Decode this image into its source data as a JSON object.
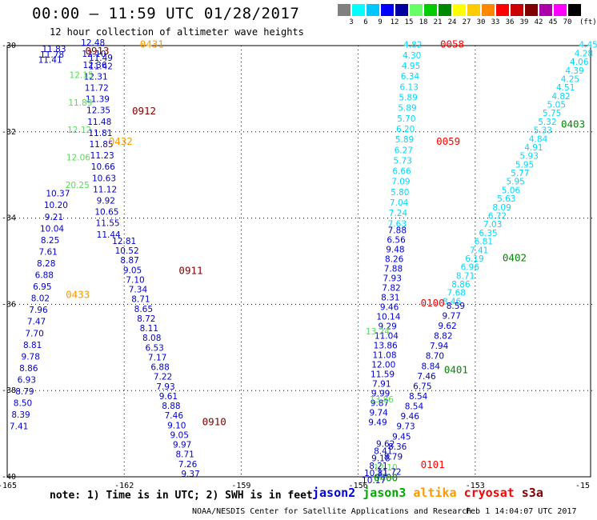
{
  "header": {
    "title": "00:00 – 11:59 UTC 01/28/2017",
    "subtitle": "12 hour collection of altimeter wave heights"
  },
  "color_scale": {
    "colors": [
      "#808080",
      "#00ffff",
      "#00c8ff",
      "#0000ff",
      "#0000a0",
      "#66ff66",
      "#00cc00",
      "#008800",
      "#ffff00",
      "#ffcc00",
      "#ff8800",
      "#ff0000",
      "#cc0000",
      "#800000",
      "#aa00aa",
      "#ff00ff",
      "#000000"
    ],
    "labels": [
      "3",
      "6",
      "9",
      "12",
      "15",
      "18",
      "21",
      "24",
      "27",
      "30",
      "33",
      "36",
      "39",
      "42",
      "45",
      "70"
    ],
    "unit": "(ft)"
  },
  "axes": {
    "x_ticks": [
      "-165",
      "-162",
      "-159",
      "-156",
      "-153",
      "-15"
    ],
    "y_ticks": [
      "-30",
      "-32",
      "-34",
      "-36",
      "-38",
      "-40"
    ]
  },
  "colors": {
    "cyan": "#00d8ff",
    "blue": "#0000cc",
    "green": "#55dd55",
    "dgreen": "#008800",
    "orange": "#ff9900",
    "red": "#ff0000",
    "maroon": "#800000"
  },
  "pass_labels": [
    {
      "text": "0431",
      "lon": -161.6,
      "lat": -30.05,
      "color": "orange"
    },
    {
      "text": "0913",
      "lon": -163.0,
      "lat": -30.2,
      "color": "maroon"
    },
    {
      "text": "0912",
      "lon": -161.8,
      "lat": -31.6,
      "color": "maroon"
    },
    {
      "text": "0432",
      "lon": -162.4,
      "lat": -32.3,
      "color": "orange"
    },
    {
      "text": "0911",
      "lon": -160.6,
      "lat": -35.3,
      "color": "maroon"
    },
    {
      "text": "0433",
      "lon": -163.5,
      "lat": -35.85,
      "color": "orange"
    },
    {
      "text": "0910",
      "lon": -160.0,
      "lat": -38.8,
      "color": "maroon"
    },
    {
      "text": "0058",
      "lon": -153.9,
      "lat": -30.05,
      "color": "red"
    },
    {
      "text": "0059",
      "lon": -154.0,
      "lat": -32.3,
      "color": "red"
    },
    {
      "text": "0100",
      "lon": -154.4,
      "lat": -36.05,
      "color": "red"
    },
    {
      "text": "0101",
      "lon": -154.4,
      "lat": -39.8,
      "color": "red"
    },
    {
      "text": "0403",
      "lon": -150.8,
      "lat": -31.9,
      "color": "dgreen"
    },
    {
      "text": "0402",
      "lon": -152.3,
      "lat": -35.0,
      "color": "dgreen"
    },
    {
      "text": "0401",
      "lon": -153.8,
      "lat": -37.6,
      "color": "dgreen"
    },
    {
      "text": "0400",
      "lon": -155.6,
      "lat": -40.1,
      "color": "dgreen"
    }
  ],
  "tracks": [
    {
      "name": "0913",
      "color": "blue",
      "lon_start": -163.8,
      "lat_start": -30.15,
      "lon_end": -163.9,
      "lat_end": -30.4,
      "values": [
        "11.83",
        "11.78",
        "11.41"
      ]
    },
    {
      "name": "0913b",
      "color": "blue",
      "lon_start": -162.6,
      "lat_start": -30.35,
      "lon_end": -162.6,
      "lat_end": -30.55,
      "values": [
        "11.49",
        "11.42"
      ]
    },
    {
      "name": "0912",
      "color": "blue",
      "lon_start": -162.8,
      "lat_start": -30.0,
      "lon_end": -162.4,
      "lat_end": -34.45,
      "values": [
        "12.48",
        "12.10",
        "12.36",
        "12.31",
        "11.72",
        "11.39",
        "12.35",
        "11.48",
        "11.81",
        "11.85",
        "11.23",
        "10.66",
        "10.63",
        "11.12",
        "9.92",
        "10.65",
        "11.55",
        "11.44"
      ]
    },
    {
      "name": "0912green",
      "color": "green",
      "lon_start": -163.1,
      "lat_start": -30.75,
      "lon_end": -163.2,
      "lat_end": -33.3,
      "values": [
        "12.15",
        "11.89",
        "12.12",
        "12.06",
        "20.25"
      ]
    },
    {
      "name": "0911",
      "color": "blue",
      "lon_start": -162.0,
      "lat_start": -34.6,
      "lon_end": -160.3,
      "lat_end": -40.0,
      "values": [
        "12.81",
        "10.52",
        "8.87",
        "9.05",
        "7.10",
        "7.34",
        "8.71",
        "8.65",
        "8.72",
        "8.11",
        "8.08",
        "6.53",
        "7.17",
        "6.88",
        "7.22",
        "7.93",
        "9.61",
        "8.88",
        "7.46",
        "9.10",
        "9.05",
        "9.97",
        "8.71",
        "7.26",
        "9.37"
      ]
    },
    {
      "name": "0433",
      "color": "blue",
      "lon_start": -163.7,
      "lat_start": -33.5,
      "lon_end": -164.7,
      "lat_end": -38.9,
      "values": [
        "10.37",
        "10.20",
        "9.21",
        "10.04",
        "8.25",
        "7.61",
        "8.28",
        "6.88",
        "6.95",
        "8.02",
        "7.96",
        "7.47",
        "7.70",
        "8.81",
        "9.78",
        "8.86",
        "6.93",
        "8.79",
        "8.50",
        "8.39",
        "7.41"
      ]
    },
    {
      "name": "0058",
      "color": "cyan",
      "lon_start": -154.6,
      "lat_start": -30.05,
      "lon_end": -155.0,
      "lat_end": -34.2,
      "values": [
        "4.82",
        "4.30",
        "4.95",
        "6.34",
        "6.13",
        "5.89",
        "5.89",
        "5.70",
        "6.20",
        "5.89",
        "6.27",
        "5.73",
        "6.66",
        "7.09",
        "5.80",
        "7.04",
        "7.24",
        "7.63"
      ]
    },
    {
      "name": "0100",
      "color": "blue",
      "lon_start": -155.0,
      "lat_start": -34.35,
      "lon_end": -155.5,
      "lat_end": -38.8,
      "values": [
        "7.88",
        "6.56",
        "9.48",
        "8.26",
        "7.88",
        "7.93",
        "7.82",
        "8.31",
        "9.46",
        "10.14",
        "9.29",
        "11.04",
        "13.86",
        "11.08",
        "12.00",
        "11.59",
        "7.91",
        "9.99",
        "9.87",
        "9.74",
        "9.49"
      ]
    },
    {
      "name": "0101",
      "color": "blue",
      "lon_start": -155.3,
      "lat_start": -39.3,
      "lon_end": -155.6,
      "lat_end": -40.15,
      "values": [
        "9.62",
        "8.41",
        "9.18",
        "8.21",
        "10.81",
        "10.17"
      ]
    },
    {
      "name": "0403",
      "color": "cyan",
      "lon_start": -150.1,
      "lat_start": -30.05,
      "lon_end": -153.6,
      "lat_end": -36.0,
      "values": [
        "4.45",
        "4.28",
        "4.06",
        "4.39",
        "4.25",
        "4.51",
        "4.82",
        "5.05",
        "5.75",
        "5.32",
        "5.33",
        "4.84",
        "4.91",
        "5.93",
        "5.95",
        "5.77",
        "5.95",
        "5.06",
        "5.63",
        "8.09",
        "6.72",
        "7.03",
        "6.35",
        "6.81",
        "7.41",
        "6.19",
        "6.96",
        "8.71",
        "8.86",
        "7.68",
        "8.46"
      ]
    },
    {
      "name": "0401",
      "color": "blue",
      "lon_start": -153.5,
      "lat_start": -36.1,
      "lon_end": -155.1,
      "lat_end": -39.6,
      "values": [
        "8.59",
        "9.77",
        "9.62",
        "8.82",
        "7.94",
        "8.70",
        "8.84",
        "7.46",
        "6.75",
        "8.54",
        "8.54",
        "9.46",
        "9.73",
        "9.45",
        "8.36",
        "8.79"
      ]
    },
    {
      "name": "0401green",
      "color": "green",
      "lon_start": -155.5,
      "lat_start": -36.7,
      "lon_end": -155.3,
      "lat_end": -39.85,
      "values": [
        "13.24",
        "13.86",
        "12.10"
      ]
    },
    {
      "name": "0401b",
      "color": "blue",
      "lon_start": -155.2,
      "lat_start": -39.95,
      "lon_end": -155.2,
      "lat_end": -39.95,
      "values": [
        "11.72"
      ]
    }
  ],
  "footer": {
    "note": "note:  1) Time is in UTC;  2) SWH is in feet",
    "satellites": [
      {
        "name": "jason2",
        "color": "#0000dd"
      },
      {
        "name": "jason3",
        "color": "#00aa00"
      },
      {
        "name": "altika",
        "color": "#ff9900"
      },
      {
        "name": "cryosat",
        "color": "#ff0000"
      },
      {
        "name": "s3a",
        "color": "#800000"
      }
    ],
    "credit": "NOAA/NESDIS Center for Satellite Applications and Research",
    "timestamp": "Feb  1 14:04:07 UTC 2017"
  }
}
